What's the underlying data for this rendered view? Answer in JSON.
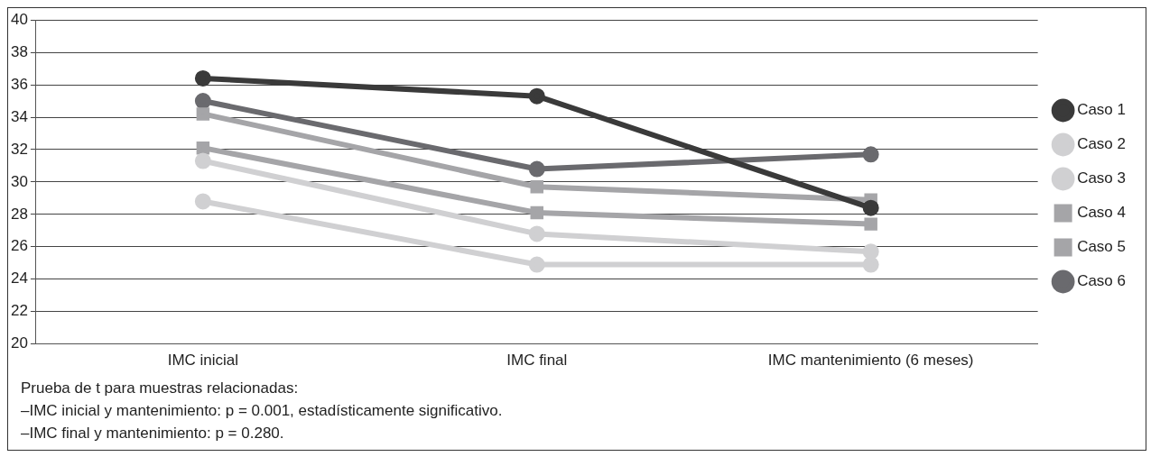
{
  "chart_data": {
    "type": "line",
    "categories": [
      "IMC inicial",
      "IMC final",
      "IMC mantenimiento (6 meses)"
    ],
    "series": [
      {
        "name": "Caso 1",
        "color": "#3a3a3a",
        "values": [
          36.4,
          35.3,
          28.4
        ],
        "marker": "circle"
      },
      {
        "name": "Caso 2",
        "color": "#d0d0d2",
        "values": [
          31.3,
          26.8,
          25.7
        ],
        "marker": "circle"
      },
      {
        "name": "Caso 3",
        "color": "#d0d0d2",
        "values": [
          28.8,
          24.9,
          24.9
        ],
        "marker": "circle"
      },
      {
        "name": "Caso 4",
        "color": "#a5a5a8",
        "values": [
          32.1,
          28.1,
          27.4
        ],
        "marker": "square"
      },
      {
        "name": "Caso 5",
        "color": "#a5a5a8",
        "values": [
          34.2,
          29.7,
          28.9
        ],
        "marker": "square"
      },
      {
        "name": "Caso 6",
        "color": "#6a6a6e",
        "values": [
          35.0,
          30.8,
          31.7
        ],
        "marker": "circle"
      }
    ],
    "ylim": [
      20,
      40
    ],
    "yticks": [
      20,
      22,
      24,
      26,
      28,
      30,
      32,
      34,
      36,
      38,
      40
    ],
    "grid": "y",
    "legend": "right",
    "line_style": "solid",
    "annotations": [
      "Prueba de t para muestras relacionadas:",
      "–IMC inicial y mantenimiento: p = 0.001, estadísticamente significativo.",
      "–IMC final y mantenimiento: p = 0.280."
    ]
  }
}
